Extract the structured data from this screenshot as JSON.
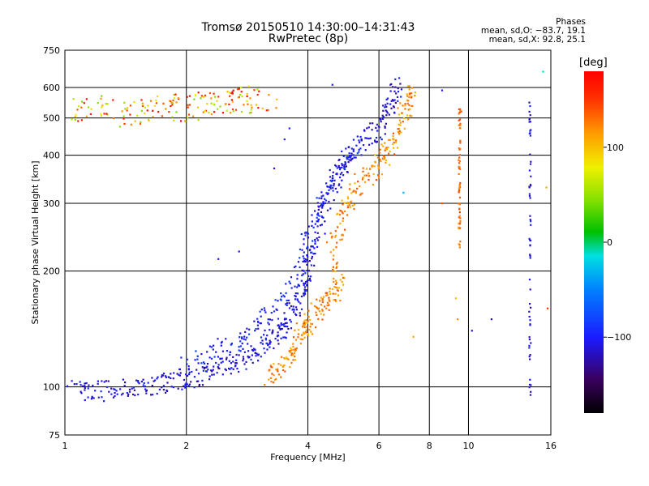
{
  "title_line1": "Tromsø 20150510 14:30:00–14:31:43",
  "title_line2": "RwPretec (8p)",
  "phase_box": {
    "heading": "Phases",
    "line_o": "mean, sd,O: −83.7, 19.1",
    "line_x": "mean, sd,X:  92.8, 25.1"
  },
  "colorbar": {
    "unit_label": "[deg]",
    "ticks": [
      100,
      0,
      -100
    ],
    "tick_labels": [
      "100",
      "0",
      "−100"
    ],
    "range": [
      -180,
      180
    ]
  },
  "chart_data": {
    "type": "scatter",
    "xlabel": "Frequency [MHz]",
    "ylabel": "Stationary phase Virtual Height [km]",
    "xscale": "log",
    "yscale": "log",
    "xlim": [
      1,
      16
    ],
    "ylim": [
      75,
      750
    ],
    "x_ticks": [
      1,
      2,
      4,
      6,
      8,
      10,
      16
    ],
    "x_tick_labels": [
      "1",
      "2",
      "4",
      "6",
      "8",
      "10",
      "16"
    ],
    "y_ticks": [
      75,
      100,
      200,
      300,
      400,
      500,
      600,
      750
    ],
    "y_tick_labels": [
      "75",
      "100",
      "200",
      "300",
      "400",
      "500",
      "600",
      "750"
    ],
    "grid": true,
    "color_dimension": "phase [deg]",
    "traces": [
      {
        "mode": "O",
        "phase": -110,
        "points": [
          [
            1.05,
            98
          ],
          [
            1.15,
            97
          ],
          [
            1.3,
            98
          ],
          [
            1.45,
            99
          ],
          [
            1.6,
            100
          ],
          [
            1.75,
            102
          ],
          [
            1.9,
            104
          ],
          [
            2.05,
            106
          ],
          [
            2.2,
            108
          ],
          [
            2.4,
            111
          ],
          [
            2.6,
            115
          ],
          [
            2.8,
            119
          ],
          [
            3.0,
            124
          ],
          [
            3.2,
            130
          ],
          [
            3.35,
            137
          ],
          [
            3.5,
            145
          ],
          [
            3.65,
            156
          ],
          [
            3.8,
            170
          ],
          [
            3.9,
            185
          ],
          [
            4.0,
            205
          ],
          [
            4.1,
            230
          ],
          [
            4.3,
            270
          ],
          [
            4.5,
            320
          ],
          [
            4.8,
            370
          ],
          [
            5.2,
            410
          ],
          [
            5.6,
            440
          ],
          [
            6.0,
            470
          ],
          [
            6.3,
            520
          ],
          [
            6.5,
            570
          ],
          [
            6.7,
            620
          ]
        ]
      },
      {
        "mode": "O",
        "phase": -100,
        "points": [
          [
            2.0,
            115
          ],
          [
            2.3,
            122
          ],
          [
            2.6,
            130
          ],
          [
            2.9,
            140
          ],
          [
            3.2,
            152
          ],
          [
            3.5,
            170
          ],
          [
            3.8,
            200
          ],
          [
            4.0,
            240
          ],
          [
            4.2,
            280
          ],
          [
            4.4,
            320
          ],
          [
            4.7,
            360
          ],
          [
            5.0,
            390
          ],
          [
            5.4,
            420
          ]
        ]
      },
      {
        "mode": "X",
        "phase": 120,
        "points": [
          [
            3.2,
            106
          ],
          [
            3.4,
            110
          ],
          [
            3.6,
            118
          ],
          [
            3.75,
            130
          ],
          [
            3.9,
            140
          ],
          [
            4.0,
            145
          ],
          [
            4.2,
            155
          ],
          [
            4.4,
            165
          ],
          [
            4.6,
            175
          ],
          [
            4.8,
            185
          ],
          [
            4.6,
            230
          ],
          [
            4.8,
            270
          ],
          [
            5.0,
            300
          ],
          [
            5.3,
            330
          ],
          [
            5.7,
            360
          ],
          [
            6.0,
            380
          ],
          [
            6.3,
            410
          ],
          [
            6.6,
            450
          ],
          [
            6.9,
            500
          ],
          [
            7.1,
            550
          ],
          [
            7.3,
            600
          ]
        ]
      },
      {
        "mode": "mixed",
        "phase": 110,
        "points": [
          [
            1.05,
            520
          ],
          [
            1.2,
            530
          ],
          [
            1.4,
            510
          ],
          [
            1.6,
            520
          ],
          [
            1.8,
            540
          ],
          [
            2.0,
            525
          ],
          [
            2.2,
            535
          ],
          [
            2.4,
            545
          ],
          [
            2.6,
            555
          ],
          [
            2.9,
            560
          ],
          [
            3.2,
            545
          ]
        ]
      }
    ],
    "scattered_points": [
      {
        "x": 3.3,
        "y": 370,
        "phase": -110
      },
      {
        "x": 3.5,
        "y": 440,
        "phase": -100
      },
      {
        "x": 2.4,
        "y": 215,
        "phase": -105
      },
      {
        "x": 2.7,
        "y": 225,
        "phase": -110
      },
      {
        "x": 3.6,
        "y": 470,
        "phase": -100
      },
      {
        "x": 4.6,
        "y": 610,
        "phase": -110
      },
      {
        "x": 8.6,
        "y": 590,
        "phase": -100
      },
      {
        "x": 9.6,
        "y": 520,
        "phase": 140
      },
      {
        "x": 9.4,
        "y": 150,
        "phase": 120
      },
      {
        "x": 10.2,
        "y": 140,
        "phase": -120
      },
      {
        "x": 11.4,
        "y": 150,
        "phase": -120
      },
      {
        "x": 15.3,
        "y": 660,
        "phase": -10
      },
      {
        "x": 15.6,
        "y": 330,
        "phase": 110
      },
      {
        "x": 15.7,
        "y": 160,
        "phase": 150
      },
      {
        "x": 6.9,
        "y": 320,
        "phase": -30
      },
      {
        "x": 8.6,
        "y": 300,
        "phase": 140
      },
      {
        "x": 9.3,
        "y": 170,
        "phase": 100
      },
      {
        "x": 9.5,
        "y": 75,
        "phase": -110
      },
      {
        "x": 7.3,
        "y": 135,
        "phase": 110
      }
    ],
    "vertical_columns": [
      {
        "x": 14.2,
        "y_range": [
          95,
          610
        ],
        "phase": -110
      },
      {
        "x": 9.5,
        "y_range": [
          230,
          530
        ],
        "phase": 130
      }
    ]
  }
}
